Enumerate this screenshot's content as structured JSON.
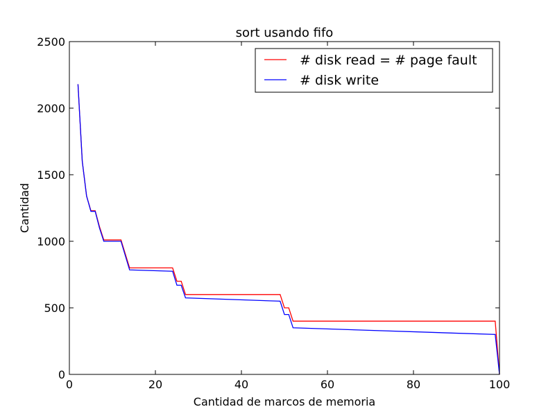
{
  "chart_data": {
    "type": "line",
    "title": "sort usando fifo",
    "xlabel": "Cantidad de marcos de memoria",
    "ylabel": "Cantidad",
    "xlim": [
      0,
      100
    ],
    "ylim": [
      0,
      2500
    ],
    "xticks": [
      0,
      20,
      40,
      60,
      80,
      100
    ],
    "yticks": [
      0,
      500,
      1000,
      1500,
      2000,
      2500
    ],
    "grid": false,
    "legend_position": "top-right",
    "series": [
      {
        "name": "# disk read = # page fault",
        "color": "#ff0000",
        "x": [
          2,
          3,
          4,
          5,
          6,
          7,
          8,
          12,
          14,
          24,
          25,
          26,
          27,
          49,
          50,
          51,
          52,
          99,
          100
        ],
        "y": [
          2180,
          1600,
          1340,
          1230,
          1230,
          1110,
          1010,
          1010,
          800,
          800,
          700,
          700,
          600,
          600,
          500,
          500,
          400,
          400,
          0
        ]
      },
      {
        "name": "# disk write",
        "color": "#0000ff",
        "x": [
          2,
          3,
          4,
          5,
          6,
          7,
          8,
          12,
          14,
          24,
          25,
          26,
          27,
          49,
          50,
          51,
          52,
          99,
          100
        ],
        "y": [
          2180,
          1600,
          1340,
          1225,
          1225,
          1100,
          1000,
          1000,
          785,
          775,
          670,
          670,
          575,
          550,
          450,
          450,
          350,
          300,
          0
        ]
      }
    ]
  }
}
